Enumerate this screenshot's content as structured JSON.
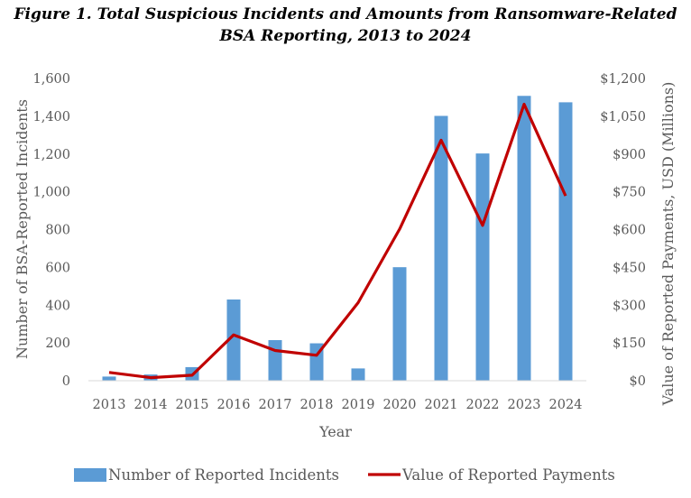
{
  "chart_data": {
    "type": "bar+line",
    "title_line1": "Figure 1. Total Suspicious Incidents and Amounts from Ransomware-Related",
    "title_line2": "BSA Reporting,  2013 to 2024",
    "xlabel": "Year",
    "ylabel_left": "Number of BSA-Reported Incidents",
    "ylabel_right": "Value of Reported Payments, USD (Millions)",
    "categories": [
      "2013",
      "2014",
      "2015",
      "2016",
      "2017",
      "2018",
      "2019",
      "2020",
      "2021",
      "2022",
      "2023",
      "2024"
    ],
    "ylim_left": [
      0,
      1600
    ],
    "ylim_right": [
      0,
      1200
    ],
    "left_ticks": [
      "0",
      "200",
      "400",
      "600",
      "800",
      "1,000",
      "1,200",
      "1,400",
      "1,600"
    ],
    "right_ticks": [
      "$0",
      "$150",
      "$300",
      "$450",
      "$600",
      "$750",
      "$900",
      "$1,050",
      "$1,200"
    ],
    "series": [
      {
        "name": "Number of Reported Incidents",
        "kind": "bar",
        "axis": "left",
        "color": "#5B9BD5",
        "values": [
          22,
          33,
          72,
          430,
          215,
          198,
          65,
          601,
          1402,
          1203,
          1508,
          1474
        ]
      },
      {
        "name": "Value of Reported Payments",
        "kind": "line",
        "axis": "right",
        "color": "#C00000",
        "values": [
          33,
          12,
          22,
          182,
          120,
          101,
          310,
          602,
          955,
          617,
          1098,
          734
        ]
      }
    ],
    "grid": false,
    "legend": "bottom"
  }
}
